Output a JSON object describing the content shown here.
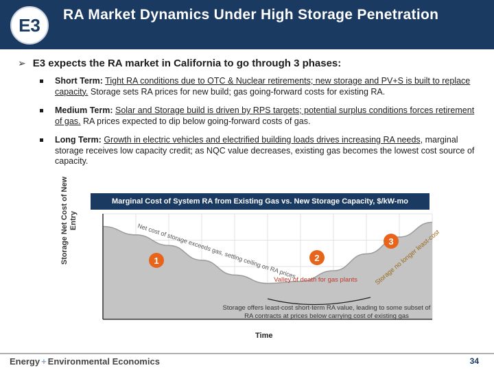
{
  "header": {
    "title": "RA Market Dynamics Under High Storage Penetration",
    "logo_text": "E3",
    "bg_color": "#1a3a62"
  },
  "lead": {
    "icon": "right-arrow-icon",
    "text": "E3 expects the RA market in California to go through 3 phases:"
  },
  "bullets": [
    {
      "term": "Short Term:",
      "underlined": "Tight RA conditions due to OTC & Nuclear retirements; new storage and PV+S is built to replace capacity.",
      "rest": " Storage sets RA prices for new build; gas going-forward costs for existing RA."
    },
    {
      "term": "Medium Term:",
      "underlined": "Solar and Storage build is driven by RPS targets; potential surplus conditions forces retirement of gas.",
      "rest": " RA prices expected to dip below going-forward costs of gas."
    },
    {
      "term": "Long Term:",
      "underlined": "Growth in electric vehicles and electrified building loads drives increasing RA needs,",
      "rest": " marginal storage receives low capacity credit; as NQC value decreases, existing gas becomes the lowest cost source of capacity."
    }
  ],
  "chart": {
    "title": "Marginal Cost of System RA from Existing Gas vs. New Storage Capacity, $/kW-mo",
    "ylabel": "Storage Net Cost of New Entry",
    "xlabel": "Time",
    "annot_phase1": "Net cost of storage exceeds gas, setting ceiling on RA prices",
    "annot_valley": "Valley of death for gas plants",
    "annot_phase3": "Storage no longer least-cost source of RA due to saturated ELCC",
    "annot_bottom": "Storage offers least-cost short-term RA value, leading to some subset of RA contracts at prices below carrying cost of existing gas",
    "phase_labels": [
      "1",
      "2",
      "3"
    ],
    "colors": {
      "phase_circle": "#e8641a",
      "valley_text": "#c0392b",
      "curve_fill": "#c4c4c4",
      "phase3_text": "#9b6a1c"
    }
  },
  "chart_data": {
    "type": "area",
    "title": "Marginal Cost of System RA from Existing Gas vs. New Storage Capacity, $/kW-mo",
    "xlabel": "Time",
    "ylabel": "Storage Net Cost of New Entry",
    "x": [
      0,
      1,
      2,
      3,
      4,
      5,
      6,
      7,
      8,
      9,
      10
    ],
    "series": [
      {
        "values": [
          0.88,
          0.8,
          0.7,
          0.56,
          0.42,
          0.34,
          0.36,
          0.46,
          0.62,
          0.78,
          0.92
        ]
      }
    ],
    "grid": true,
    "ylim": [
      0,
      1
    ],
    "xlim": [
      0,
      10
    ]
  },
  "footer": {
    "brand_left": "Energy",
    "brand_sep": "+",
    "brand_right": "Environmental Economics",
    "page_number": "34"
  }
}
